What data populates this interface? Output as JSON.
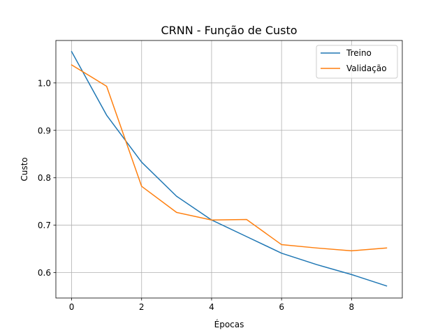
{
  "chart_data": {
    "type": "line",
    "title": "CRNN - Função de Custo",
    "xlabel": "Épocas",
    "ylabel": "Custo",
    "xlim": [
      -0.45,
      9.45
    ],
    "ylim": [
      0.5465,
      1.0895
    ],
    "xticks": [
      0,
      2,
      4,
      6,
      8
    ],
    "xtick_labels": [
      "0",
      "2",
      "4",
      "6",
      "8"
    ],
    "yticks": [
      0.6,
      0.7,
      0.8,
      0.9,
      1.0
    ],
    "ytick_labels": [
      "0.6",
      "0.7",
      "0.8",
      "0.9",
      "1.0"
    ],
    "grid": true,
    "legend_position": "top-right",
    "x": [
      0,
      1,
      2,
      3,
      4,
      5,
      6,
      7,
      8,
      9
    ],
    "series": [
      {
        "name": "Treino",
        "color": "#1f77b4",
        "values": [
          1.066,
          0.932,
          0.833,
          0.761,
          0.711,
          0.676,
          0.641,
          0.617,
          0.596,
          0.572
        ]
      },
      {
        "name": "Validação",
        "color": "#ff7f0e",
        "values": [
          1.038,
          0.993,
          0.782,
          0.727,
          0.711,
          0.712,
          0.659,
          0.652,
          0.646,
          0.652
        ]
      }
    ]
  }
}
